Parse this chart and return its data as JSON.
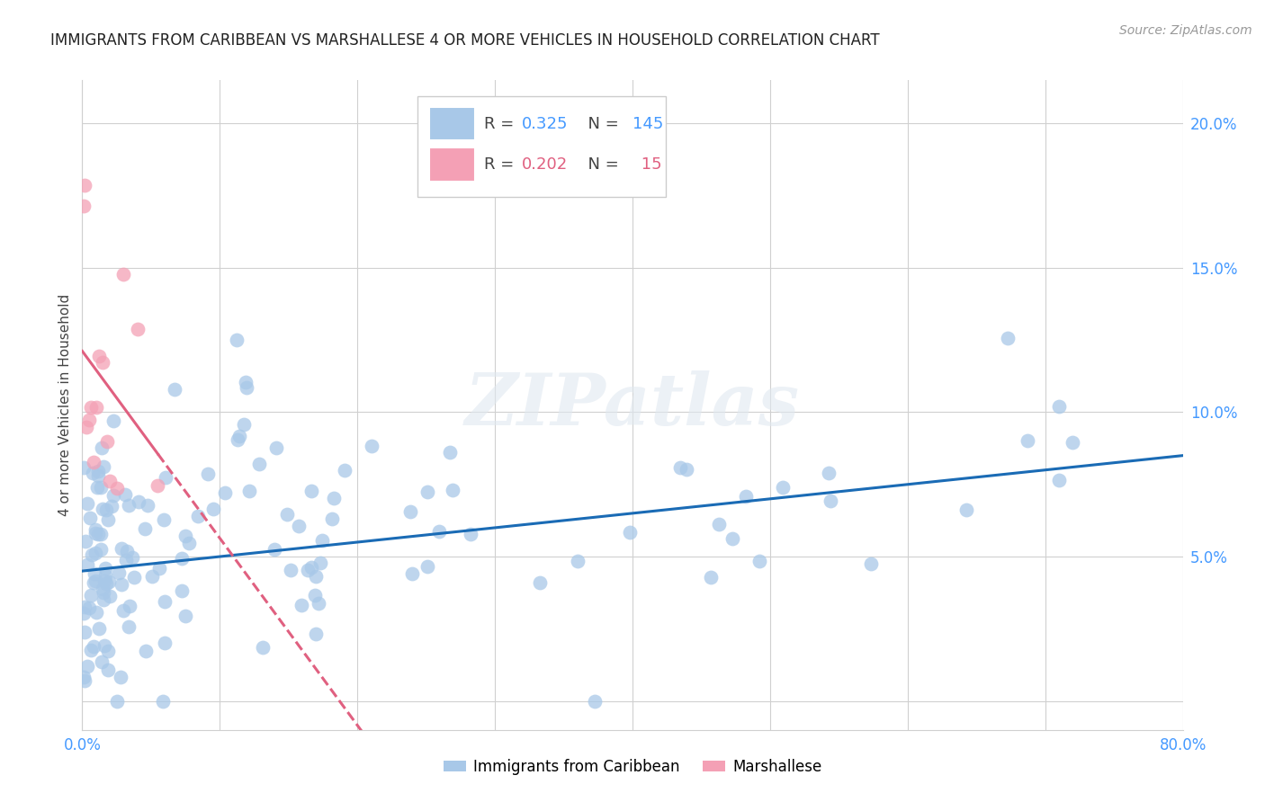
{
  "title": "IMMIGRANTS FROM CARIBBEAN VS MARSHALLESE 4 OR MORE VEHICLES IN HOUSEHOLD CORRELATION CHART",
  "source": "Source: ZipAtlas.com",
  "ylabel": "4 or more Vehicles in Household",
  "xmin": 0.0,
  "xmax": 0.8,
  "ymin": -0.01,
  "ymax": 0.215,
  "caribbean_color": "#a8c8e8",
  "marshallese_color": "#f4a0b5",
  "caribbean_R": 0.325,
  "caribbean_N": 145,
  "marshallese_R": 0.202,
  "marshallese_N": 15,
  "legend_label_caribbean": "Immigrants from Caribbean",
  "legend_label_marshallese": "Marshallese",
  "watermark": "ZIPatlas",
  "caribbean_line_color": "#1a6bb5",
  "marshallese_line_color": "#e06080",
  "background_color": "#ffffff",
  "grid_color": "#d0d0d0",
  "title_color": "#222222",
  "axis_color": "#4499ff",
  "legend_R_color_caribbean": "#4499ff",
  "legend_N_color_caribbean": "#4499ff",
  "legend_R_color_marshallese": "#e06080",
  "legend_N_color_marshallese": "#e06080"
}
